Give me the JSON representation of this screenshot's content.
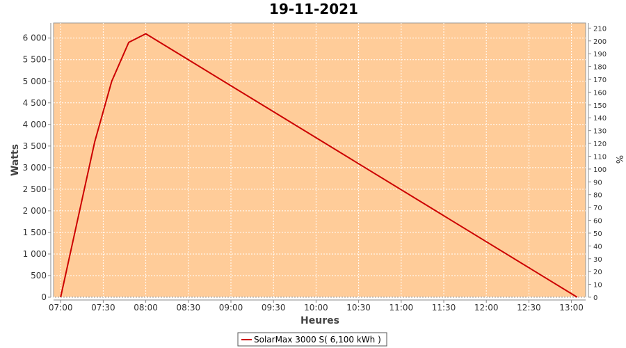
{
  "chart_data": {
    "type": "line",
    "title": "19-11-2021",
    "xlabel": "Heures",
    "ylabel": "Watts",
    "y2label": "%",
    "x_ticks": [
      "07:00",
      "07:30",
      "08:00",
      "08:30",
      "09:00",
      "09:30",
      "10:00",
      "10:30",
      "11:00",
      "11:30",
      "12:00",
      "12:30",
      "13:00"
    ],
    "y_ticks": [
      "0",
      "500",
      "1 000",
      "1 500",
      "2 000",
      "2 500",
      "3 000",
      "3 500",
      "4 000",
      "4 500",
      "5 000",
      "5 500",
      "6 000"
    ],
    "y2_ticks": [
      "0",
      "10",
      "20",
      "30",
      "40",
      "50",
      "60",
      "70",
      "80",
      "90",
      "100",
      "110",
      "120",
      "130",
      "140",
      "150",
      "160",
      "170",
      "180",
      "190",
      "200",
      "210"
    ],
    "xlim": [
      "06:55",
      "13:10"
    ],
    "ylim": [
      0,
      6350
    ],
    "y2lim": [
      0,
      214
    ],
    "grid": true,
    "legend_position": "bottom",
    "colors": {
      "plot_bg": "#FFCC99",
      "line": "#CC0000",
      "grid": "#FFFFFF"
    },
    "series": [
      {
        "name": "SolarMax 3000 S( 6,100 kWh )",
        "x": [
          "07:00",
          "07:12",
          "07:24",
          "07:36",
          "07:48",
          "08:00",
          "13:04"
        ],
        "values": [
          0,
          1800,
          3600,
          5000,
          5900,
          6100,
          0
        ]
      }
    ]
  }
}
